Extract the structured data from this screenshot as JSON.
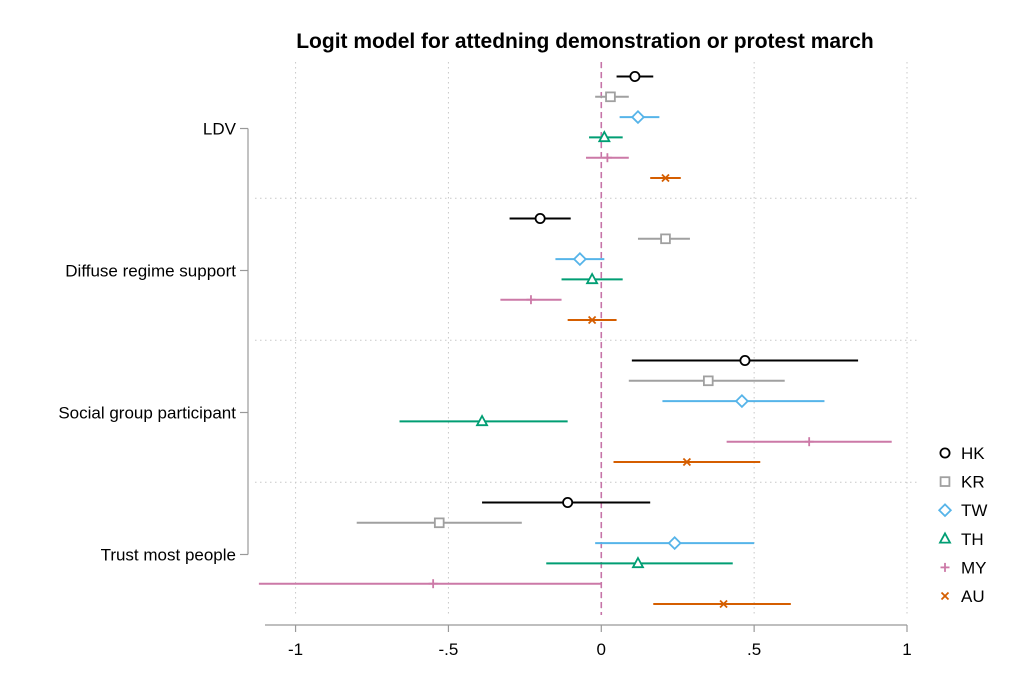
{
  "chart_data": {
    "type": "scatter",
    "subtype": "coefficient-plot",
    "title": "Logit model for attedning demonstration or protest march",
    "xlabel": "",
    "ylabel": "",
    "xlim": [
      -1.1,
      1.0
    ],
    "xticks": [
      {
        "value": -1,
        "label": "-1"
      },
      {
        "value": -0.5,
        "label": "-.5"
      },
      {
        "value": 0,
        "label": "0"
      },
      {
        "value": 0.5,
        "label": ".5"
      },
      {
        "value": 1,
        "label": "1"
      }
    ],
    "grid": true,
    "reference_line": {
      "x": 0,
      "color": "#c674a8",
      "style": "dashed"
    },
    "legend_position": "right",
    "variables": [
      "LDV",
      "Diffuse regime support",
      "Social group participant",
      "Trust most people"
    ],
    "series": [
      {
        "name": "HK",
        "marker": "circle",
        "color": "#000000",
        "estimates": [
          0.11,
          -0.2,
          0.47,
          -0.11
        ],
        "ci_low": [
          0.05,
          -0.3,
          0.1,
          -0.39
        ],
        "ci_high": [
          0.17,
          -0.1,
          0.84,
          0.16
        ]
      },
      {
        "name": "KR",
        "marker": "square",
        "color": "#a0a0a0",
        "estimates": [
          0.03,
          0.21,
          0.35,
          -0.53
        ],
        "ci_low": [
          -0.02,
          0.12,
          0.09,
          -0.8
        ],
        "ci_high": [
          0.09,
          0.29,
          0.6,
          -0.26
        ]
      },
      {
        "name": "TW",
        "marker": "diamond",
        "color": "#56b4e9",
        "estimates": [
          0.12,
          -0.07,
          0.46,
          0.24
        ],
        "ci_low": [
          0.06,
          -0.15,
          0.2,
          -0.02
        ],
        "ci_high": [
          0.19,
          0.01,
          0.73,
          0.5
        ]
      },
      {
        "name": "TH",
        "marker": "triangle",
        "color": "#009e73",
        "estimates": [
          0.01,
          -0.03,
          -0.39,
          0.12
        ],
        "ci_low": [
          -0.04,
          -0.13,
          -0.66,
          -0.18
        ],
        "ci_high": [
          0.07,
          0.07,
          -0.11,
          0.43
        ]
      },
      {
        "name": "MY",
        "marker": "plus",
        "color": "#cc79a7",
        "estimates": [
          0.02,
          -0.23,
          0.68,
          -0.55
        ],
        "ci_low": [
          -0.05,
          -0.33,
          0.41,
          -1.12
        ],
        "ci_high": [
          0.09,
          -0.13,
          0.95,
          0.0
        ]
      },
      {
        "name": "AU",
        "marker": "x",
        "color": "#d55e00",
        "estimates": [
          0.21,
          -0.03,
          0.28,
          0.4
        ],
        "ci_low": [
          0.16,
          -0.11,
          0.04,
          0.17
        ],
        "ci_high": [
          0.26,
          0.05,
          0.52,
          0.62
        ]
      }
    ]
  }
}
